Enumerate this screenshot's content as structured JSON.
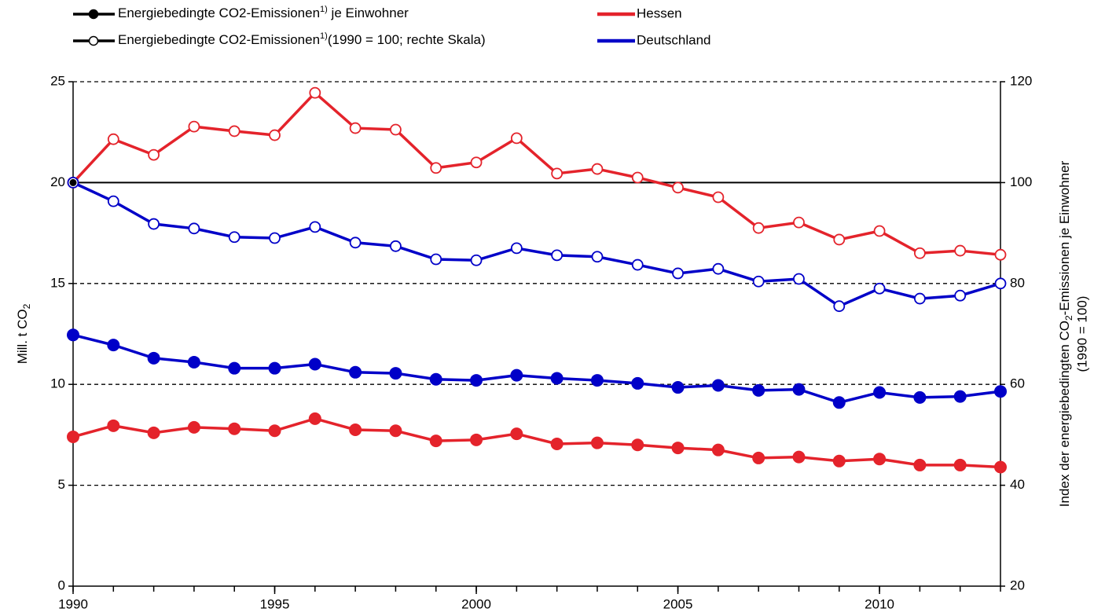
{
  "chart_data": {
    "type": "line",
    "legend": [
      {
        "parts": [
          "Energiebedingte CO2-Emissionen",
          "1)",
          " je Einwohner"
        ],
        "marker": "filled"
      },
      {
        "parts": [
          "Energiebedingte CO2-Emissionen",
          "1)",
          "(1990 = 100; rechte Skala)"
        ],
        "marker": "hollow"
      }
    ],
    "x": [
      1990,
      1991,
      1992,
      1993,
      1994,
      1995,
      1996,
      1997,
      1998,
      1999,
      2000,
      2001,
      2002,
      2003,
      2004,
      2005,
      2006,
      2007,
      2008,
      2009,
      2010,
      2011,
      2012,
      2013
    ],
    "xlim": [
      1990,
      2013
    ],
    "xticks": [
      1990,
      1995,
      2000,
      2005,
      2010
    ],
    "series": [
      {
        "name": "Hessen",
        "color": "#e4232b",
        "values": [
          7.4,
          7.95,
          7.6,
          7.87,
          7.8,
          7.7,
          8.3,
          7.75,
          7.7,
          7.2,
          7.25,
          7.55,
          7.05,
          7.1,
          7.0,
          6.85,
          6.75,
          6.35,
          6.4,
          6.2,
          6.3,
          6.0,
          6.0,
          5.9
        ],
        "y2_values": [
          100,
          108.6,
          105.5,
          111.1,
          110.2,
          109.4,
          117.8,
          110.8,
          110.5,
          102.9,
          104,
          108.8,
          101.8,
          102.7,
          101,
          99,
          97.1,
          91,
          92.1,
          88.7,
          90.4,
          86,
          86.5,
          85.7
        ]
      },
      {
        "name": "Deutschland",
        "color": "#0000c8",
        "values": [
          12.45,
          11.95,
          11.3,
          11.1,
          10.8,
          10.8,
          11.0,
          10.6,
          10.55,
          10.25,
          10.2,
          10.45,
          10.3,
          10.2,
          10.05,
          9.85,
          9.95,
          9.7,
          9.75,
          9.1,
          9.6,
          9.35,
          9.4,
          9.65
        ],
        "y2_values": [
          100,
          96.3,
          91.8,
          90.9,
          89.2,
          89,
          91.2,
          88.1,
          87.4,
          84.8,
          84.6,
          87,
          85.6,
          85.3,
          83.7,
          82,
          82.9,
          80.4,
          80.9,
          75.5,
          79,
          77,
          77.6,
          80
        ]
      }
    ],
    "ylim": [
      0,
      25
    ],
    "yticks": [
      0,
      5,
      10,
      15,
      20,
      25
    ],
    "y2lim": [
      20,
      120
    ],
    "y2ticks": [
      20,
      40,
      60,
      80,
      100,
      120
    ],
    "y2_reference": 100,
    "grid": "dashed",
    "ylabel": [
      "Mill. t CO",
      "2"
    ],
    "y2label": [
      "Index der energiebedingten CO",
      "2",
      "-Emissionen je Einwohner"
    ],
    "y2label_line2": "(1990 = 100)"
  }
}
